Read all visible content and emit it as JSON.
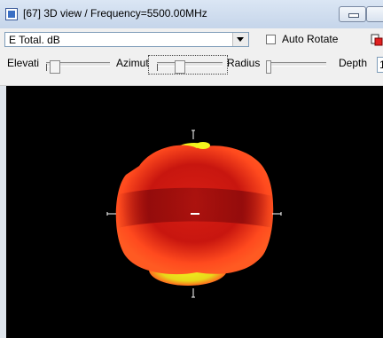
{
  "window": {
    "title": "[67] 3D view / Frequency=5500.00MHz"
  },
  "toolbar": {
    "quantity_select": "E Total. dB",
    "auto_rotate_label": "Auto Rotate",
    "auto_rotate_checked": false,
    "elevation_label": "Elevati",
    "azimuth_label": "Azimut",
    "radius_label": "Radius",
    "depth_label": "Depth",
    "depth_value": "1"
  },
  "view": {
    "background_color": "#000000",
    "pattern_colors": [
      "#8f0b0b",
      "#d71e14",
      "#ff4a1e",
      "#f2f21e"
    ],
    "axis_color": "#ffffff"
  }
}
